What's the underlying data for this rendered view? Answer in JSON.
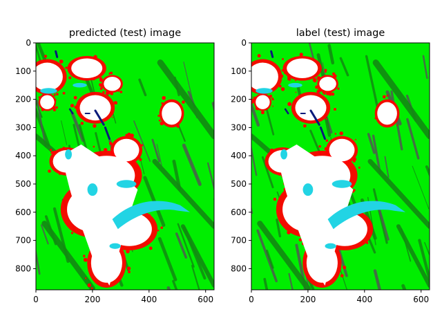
{
  "colors": {
    "vegetation": "#00ee00",
    "forest": "#128a12",
    "rock": "#4f5a50",
    "snow": "#ffffff",
    "debris": "#ff0000",
    "glacier_ice": "#22d4e4",
    "water": "#0a1a7a"
  },
  "chart_data": [
    {
      "type": "heatmap",
      "title": "predicted (test) image",
      "xlim": [
        0,
        630
      ],
      "ylim": [
        875,
        0
      ],
      "xticks": [
        "0",
        "200",
        "400",
        "600"
      ],
      "xtick_values": [
        0,
        200,
        400,
        600
      ],
      "yticks": [
        "0",
        "100",
        "200",
        "300",
        "400",
        "500",
        "600",
        "700",
        "800"
      ],
      "ytick_values": [
        0,
        100,
        200,
        300,
        400,
        500,
        600,
        700,
        800
      ],
      "grid": false
    },
    {
      "type": "heatmap",
      "title": "label (test) image",
      "xlim": [
        0,
        630
      ],
      "ylim": [
        875,
        0
      ],
      "xticks": [
        "0",
        "200",
        "400",
        "600"
      ],
      "xtick_values": [
        0,
        200,
        400,
        600
      ],
      "yticks": [
        "0",
        "100",
        "200",
        "300",
        "400",
        "500",
        "600",
        "700",
        "800"
      ],
      "ytick_values": [
        0,
        100,
        200,
        300,
        400,
        500,
        600,
        700,
        800
      ],
      "grid": false
    }
  ]
}
